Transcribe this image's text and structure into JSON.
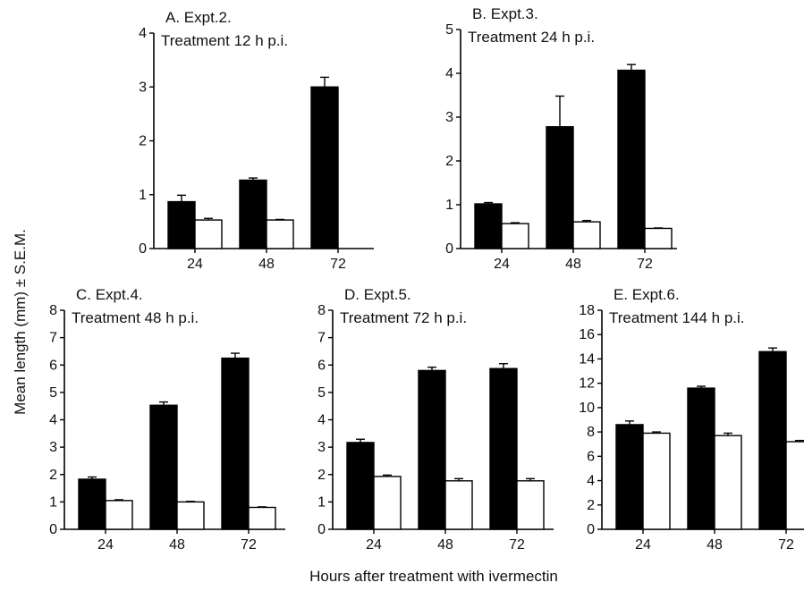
{
  "figure": {
    "ylabel": "Mean length (mm) ± S.E.M.",
    "xlabel": "Hours after treatment with ivermectin"
  },
  "chart_data": [
    {
      "type": "bar",
      "title": "A. Expt.2.",
      "subtitle": "Treatment 12 h p.i.",
      "categories": [
        "24",
        "48",
        "72"
      ],
      "ylim": [
        0,
        4
      ],
      "yticks": [
        0,
        1,
        2,
        3,
        4
      ],
      "colors": [
        "#000000",
        "#ffffff"
      ],
      "series": [
        {
          "values": [
            0.87,
            1.27,
            3.0
          ],
          "errors": [
            0.12,
            0.04,
            0.18
          ]
        },
        {
          "values": [
            0.53,
            0.53,
            null
          ],
          "errors": [
            0.03,
            0.01,
            null
          ]
        }
      ]
    },
    {
      "type": "bar",
      "title": "B. Expt.3.",
      "subtitle": "Treatment 24 h p.i.",
      "categories": [
        "24",
        "48",
        "72"
      ],
      "ylim": [
        0,
        5
      ],
      "yticks": [
        0,
        1,
        2,
        3,
        4,
        5
      ],
      "colors": [
        "#000000",
        "#ffffff"
      ],
      "series": [
        {
          "values": [
            1.02,
            2.78,
            4.07
          ],
          "errors": [
            0.03,
            0.7,
            0.13
          ]
        },
        {
          "values": [
            0.57,
            0.61,
            0.46
          ],
          "errors": [
            0.02,
            0.03,
            0.01
          ]
        }
      ]
    },
    {
      "type": "bar",
      "title": "C. Expt.4.",
      "subtitle": "Treatment 48 h p.i.",
      "categories": [
        "24",
        "48",
        "72"
      ],
      "ylim": [
        0,
        8
      ],
      "yticks": [
        0,
        1,
        2,
        3,
        4,
        5,
        6,
        7,
        8
      ],
      "colors": [
        "#000000",
        "#ffffff"
      ],
      "series": [
        {
          "values": [
            1.83,
            4.53,
            6.25
          ],
          "errors": [
            0.08,
            0.12,
            0.18
          ]
        },
        {
          "values": [
            1.05,
            1.0,
            0.8
          ],
          "errors": [
            0.03,
            0.02,
            0.02
          ]
        }
      ]
    },
    {
      "type": "bar",
      "title": "D. Expt.5.",
      "subtitle": "Treatment 72 h p.i.",
      "categories": [
        "24",
        "48",
        "72"
      ],
      "ylim": [
        0,
        8
      ],
      "yticks": [
        0,
        1,
        2,
        3,
        4,
        5,
        6,
        7,
        8
      ],
      "colors": [
        "#000000",
        "#ffffff"
      ],
      "series": [
        {
          "values": [
            3.17,
            5.8,
            5.87
          ],
          "errors": [
            0.12,
            0.12,
            0.18
          ]
        },
        {
          "values": [
            1.93,
            1.77,
            1.77
          ],
          "errors": [
            0.05,
            0.08,
            0.08
          ]
        }
      ]
    },
    {
      "type": "bar",
      "title": "E. Expt.6.",
      "subtitle": "Treatment 144 h p.i.",
      "categories": [
        "24",
        "48",
        "72"
      ],
      "ylim": [
        0,
        18
      ],
      "yticks": [
        0,
        2,
        4,
        6,
        8,
        10,
        12,
        14,
        16,
        18
      ],
      "colors": [
        "#000000",
        "#ffffff"
      ],
      "series": [
        {
          "values": [
            8.6,
            11.6,
            14.6
          ],
          "errors": [
            0.3,
            0.15,
            0.3
          ]
        },
        {
          "values": [
            7.9,
            7.7,
            7.2
          ],
          "errors": [
            0.1,
            0.2,
            0.1
          ]
        }
      ]
    }
  ]
}
